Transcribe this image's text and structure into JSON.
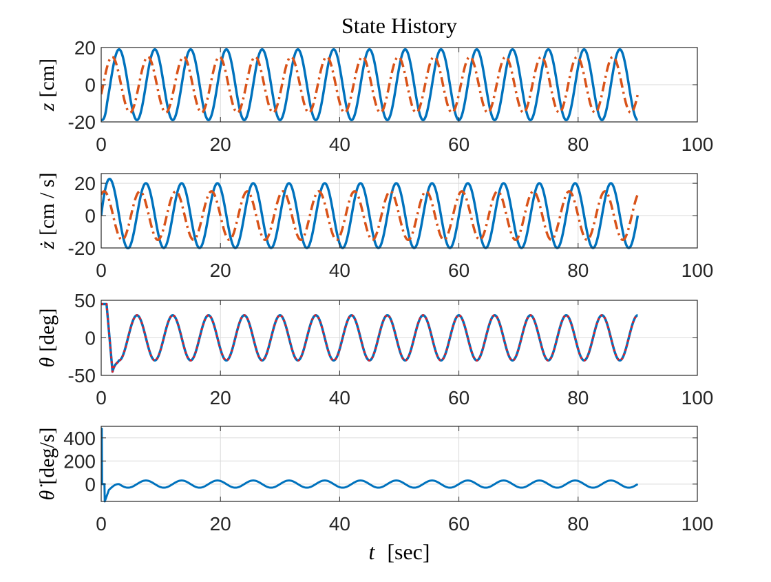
{
  "chart_data": {
    "title": "State History",
    "type": "line",
    "subplots": [
      {
        "id": "z",
        "ylabel_symbol": "z",
        "ylabel_unit": "[cm]",
        "xlim": [
          0,
          100
        ],
        "ylim": [
          -20,
          20
        ],
        "xticks": [
          0,
          20,
          40,
          60,
          80,
          100
        ],
        "yticks": [
          -20,
          0,
          20
        ],
        "grid": true,
        "series": [
          {
            "style": "solid",
            "color": "#0072BD",
            "description": "sinusoid",
            "amplitude": 19,
            "period": 6.0,
            "phase_deg": -90,
            "t_end": 90
          },
          {
            "style": "dash-dot",
            "color": "#D95319",
            "description": "sinusoid",
            "amplitude": 15,
            "period": 6.0,
            "phase_deg": -20,
            "t_end": 90
          }
        ]
      },
      {
        "id": "zdot",
        "ylabel_symbol": "ż",
        "ylabel_unit": "[cm / s]",
        "xlim": [
          0,
          100
        ],
        "ylim": [
          -20,
          26
        ],
        "xticks": [
          0,
          20,
          40,
          60,
          80,
          100
        ],
        "yticks": [
          -20,
          0,
          20
        ],
        "grid": true,
        "series": [
          {
            "style": "solid",
            "color": "#0072BD",
            "description": "sinusoid with initial overshoot to 26",
            "amplitude": 20,
            "period": 6.0,
            "phase_deg": 0,
            "t_end": 90
          },
          {
            "style": "dash-dot",
            "color": "#D95319",
            "description": "sinusoid",
            "amplitude": 15,
            "period": 6.0,
            "phase_deg": 60,
            "t_end": 90
          }
        ]
      },
      {
        "id": "theta",
        "ylabel_symbol": "θ",
        "ylabel_unit": "[deg]",
        "xlim": [
          0,
          100
        ],
        "ylim": [
          -50,
          50
        ],
        "xticks": [
          0,
          20,
          40,
          60,
          80,
          100
        ],
        "yticks": [
          -50,
          0,
          50
        ],
        "grid": true,
        "series": [
          {
            "style": "solid",
            "color": "#0072BD",
            "description": "sinusoid after transient 45 to -45",
            "amplitude": 30,
            "period": 6.0,
            "phase_deg": 90,
            "t_end": 90
          },
          {
            "style": "dotted",
            "color": "#E0202A",
            "description": "sinusoid after transient 45 to -45",
            "amplitude": 30,
            "period": 6.0,
            "phase_deg": 90,
            "t_end": 90
          }
        ]
      },
      {
        "id": "thetadot",
        "ylabel_symbol": "θ̇",
        "ylabel_unit": "[deg/s]",
        "xlim": [
          0,
          100
        ],
        "ylim": [
          -150,
          500
        ],
        "xticks": [
          0,
          20,
          40,
          60,
          80,
          100
        ],
        "yticks": [
          0,
          200,
          400
        ],
        "grid": true,
        "series": [
          {
            "style": "solid",
            "color": "#0072BD",
            "description": "initial spike to ~480, dip to ~-150, then sinusoid amplitude ~30",
            "amplitude": 31,
            "period": 6.0,
            "phase_deg": 0,
            "t_end": 90
          }
        ]
      }
    ],
    "xlabel_symbol": "t",
    "xlabel_unit": "[sec]"
  }
}
